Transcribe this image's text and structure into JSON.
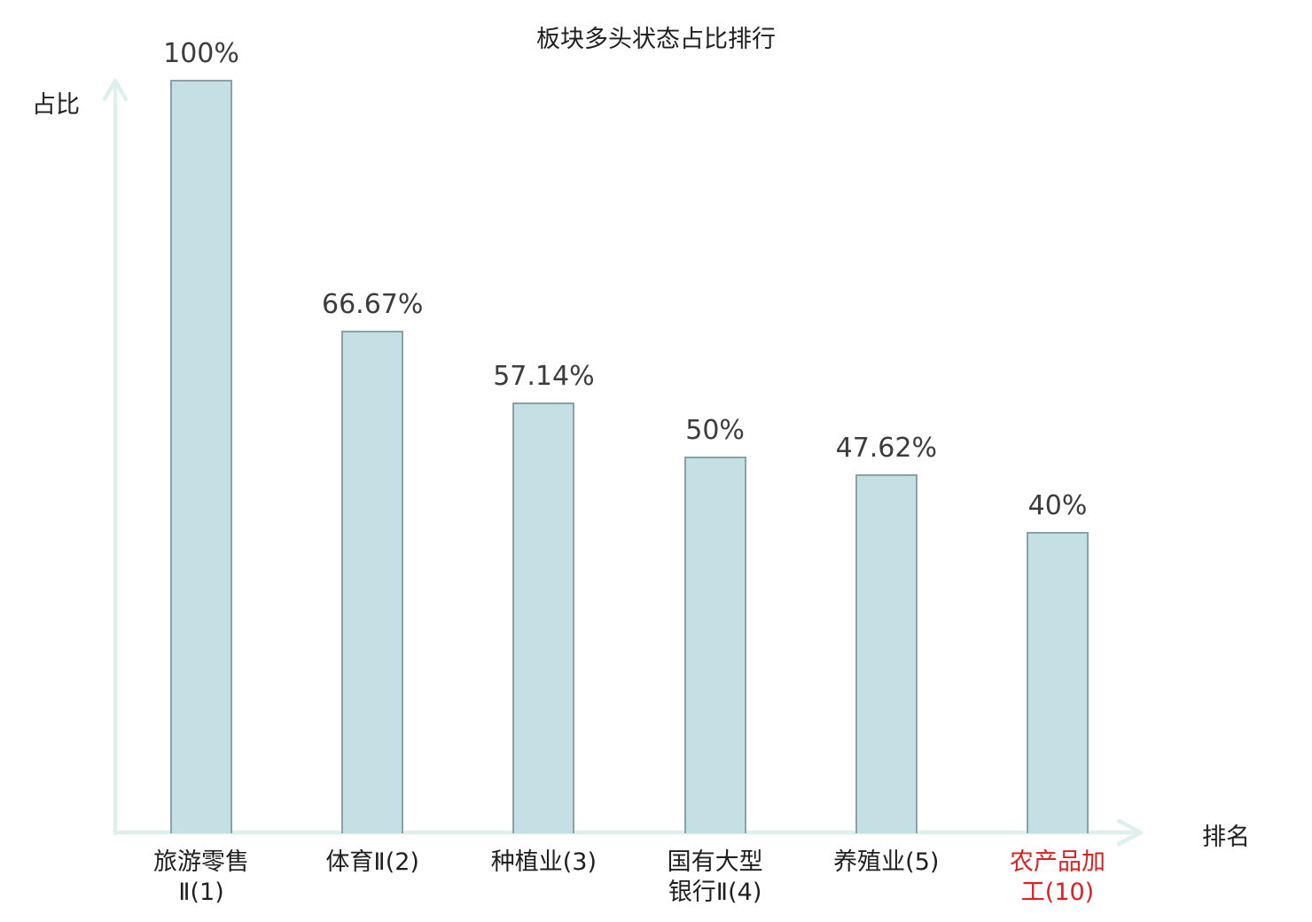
{
  "chart_data": {
    "type": "bar",
    "title": "板块多头状态占比排行",
    "xlabel": "排名",
    "ylabel": "占比",
    "categories": [
      "旅游零售Ⅱ(1)",
      "体育Ⅱ(2)",
      "种植业(3)",
      "国有大型银行Ⅱ(4)",
      "养殖业(5)",
      "农产品加工(10)"
    ],
    "category_lines": [
      [
        "旅游零售",
        "Ⅱ(1)"
      ],
      [
        "体育Ⅱ(2)"
      ],
      [
        "种植业(3)"
      ],
      [
        "国有大型",
        "银行Ⅱ(4)"
      ],
      [
        "养殖业(5)"
      ],
      [
        "农产品加",
        "工(10)"
      ]
    ],
    "values": [
      100,
      66.67,
      57.14,
      50,
      47.62,
      40
    ],
    "value_labels": [
      "100%",
      "66.67%",
      "57.14%",
      "50%",
      "47.62%",
      "40%"
    ],
    "ylim": [
      0,
      100
    ],
    "grid": false,
    "legend": "none",
    "highlight_category_index": 5,
    "colors": {
      "bar_fill": "#c4e0e5",
      "bar_border": "#8ba1a5",
      "axis": "#ddf0ec",
      "value_text": "#3c3c3c",
      "category_text": "#1f1f1f",
      "highlight_text": "#e02020"
    }
  }
}
